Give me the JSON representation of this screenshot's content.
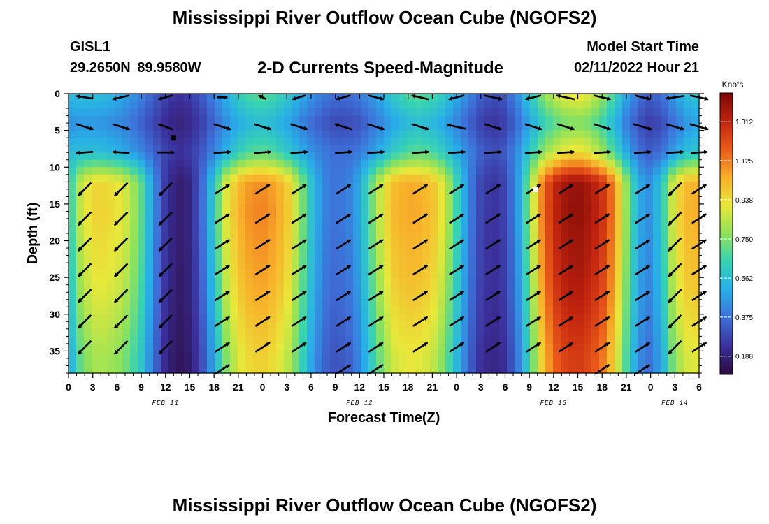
{
  "header": {
    "title": "Mississippi River Outflow Ocean Cube (NGOFS2)",
    "station": "GISL1",
    "coords": "29.2650N  89.9580W",
    "subtitle": "2-D Currents Speed-Magnitude",
    "model_start_label": "Model Start Time",
    "model_start_value": "02/11/2022 Hour 21"
  },
  "footer": {
    "title": "Mississippi River Outflow Ocean Cube (NGOFS2)"
  },
  "chart_data": {
    "type": "heatmap",
    "xlabel": "Forecast Time(Z)",
    "ylabel": "Depth (ft)",
    "x_tick_labels": [
      "0",
      "3",
      "6",
      "9",
      "12",
      "15",
      "18",
      "21",
      "0",
      "3",
      "6",
      "9",
      "12",
      "15",
      "18",
      "21",
      "0",
      "3",
      "6",
      "9",
      "12",
      "15",
      "18",
      "21",
      "0",
      "3",
      "6"
    ],
    "date_labels": [
      {
        "label": "FEB 11",
        "hour": 12
      },
      {
        "label": "FEB 12",
        "hour": 36
      },
      {
        "label": "FEB 13",
        "hour": 60
      },
      {
        "label": "FEB 14",
        "hour": 75
      }
    ],
    "x_range_hours": [
      0,
      78
    ],
    "y_ticks": [
      0,
      5,
      10,
      15,
      20,
      25,
      30,
      35
    ],
    "y_range_ft": [
      0,
      38
    ],
    "colorbar": {
      "title": "Knots",
      "tick_labels": [
        "1.312",
        "1.125",
        "0.938",
        "0.750",
        "0.562",
        "0.375",
        "0.188"
      ],
      "tick_values": [
        1.312,
        1.125,
        0.938,
        0.75,
        0.562,
        0.375,
        0.188
      ],
      "range": [
        0.1,
        1.45
      ],
      "colors": [
        "#2a0a3c",
        "#3b2f9a",
        "#3e6fd8",
        "#28aee8",
        "#36d2b4",
        "#8fe25a",
        "#e8e83a",
        "#f8b02a",
        "#ea5a1a",
        "#c2240e",
        "#7a0808"
      ]
    },
    "speed_grid_knots": {
      "times_hours": [
        0,
        1.5,
        3,
        4.5,
        6,
        7.5,
        9,
        10.5,
        12,
        13.5,
        15,
        16.5,
        18,
        19.5,
        21,
        22.5,
        24,
        25.5,
        27,
        28.5,
        30,
        31.5,
        33,
        34.5,
        36,
        37.5,
        39,
        40.5,
        42,
        43.5,
        45,
        46.5,
        48,
        49.5,
        51,
        52.5,
        54,
        55.5,
        57,
        58.5,
        60,
        61.5,
        63,
        64.5,
        66,
        67.5,
        69,
        70.5,
        72,
        73.5,
        75,
        76.5,
        78
      ],
      "depths_ft": [
        0,
        4,
        8,
        12,
        16,
        20,
        24,
        28,
        32,
        36
      ],
      "rows": [
        [
          0.55,
          0.56,
          0.56,
          0.55,
          0.52,
          0.47,
          0.41,
          0.34,
          0.28,
          0.24,
          0.26,
          0.32,
          0.42,
          0.52,
          0.62,
          0.68,
          0.7,
          0.67,
          0.6,
          0.52,
          0.45,
          0.4,
          0.37,
          0.37,
          0.4,
          0.46,
          0.54,
          0.62,
          0.68,
          0.7,
          0.67,
          0.6,
          0.51,
          0.42,
          0.34,
          0.3,
          0.33,
          0.44,
          0.6,
          0.75,
          0.86,
          0.92,
          0.94,
          0.9,
          0.8,
          0.66,
          0.5,
          0.38,
          0.33,
          0.38,
          0.48,
          0.56,
          0.6
        ],
        [
          0.44,
          0.45,
          0.45,
          0.44,
          0.42,
          0.39,
          0.34,
          0.28,
          0.22,
          0.19,
          0.21,
          0.27,
          0.35,
          0.43,
          0.5,
          0.54,
          0.56,
          0.53,
          0.48,
          0.42,
          0.36,
          0.32,
          0.29,
          0.29,
          0.31,
          0.37,
          0.43,
          0.49,
          0.54,
          0.56,
          0.53,
          0.48,
          0.41,
          0.34,
          0.27,
          0.24,
          0.27,
          0.36,
          0.48,
          0.6,
          0.68,
          0.73,
          0.75,
          0.72,
          0.64,
          0.53,
          0.4,
          0.3,
          0.26,
          0.3,
          0.38,
          0.45,
          0.48
        ],
        [
          0.55,
          0.56,
          0.56,
          0.55,
          0.52,
          0.48,
          0.42,
          0.35,
          0.28,
          0.24,
          0.26,
          0.32,
          0.42,
          0.52,
          0.62,
          0.68,
          0.7,
          0.67,
          0.6,
          0.52,
          0.45,
          0.4,
          0.37,
          0.37,
          0.4,
          0.46,
          0.54,
          0.62,
          0.68,
          0.7,
          0.67,
          0.6,
          0.51,
          0.42,
          0.34,
          0.3,
          0.33,
          0.44,
          0.6,
          0.75,
          0.86,
          0.92,
          0.94,
          0.9,
          0.8,
          0.66,
          0.5,
          0.38,
          0.33,
          0.38,
          0.48,
          0.56,
          0.6
        ],
        [
          0.6,
          0.85,
          0.95,
          0.95,
          0.92,
          0.85,
          0.7,
          0.45,
          0.25,
          0.17,
          0.2,
          0.35,
          0.6,
          0.88,
          1.02,
          1.08,
          1.1,
          1.06,
          0.98,
          0.8,
          0.58,
          0.42,
          0.38,
          0.4,
          0.5,
          0.72,
          0.92,
          1.02,
          1.05,
          1.04,
          1.0,
          0.88,
          0.65,
          0.42,
          0.28,
          0.24,
          0.28,
          0.45,
          0.75,
          1.1,
          1.3,
          1.38,
          1.4,
          1.36,
          1.28,
          1.1,
          0.78,
          0.5,
          0.44,
          0.62,
          0.92,
          1.02,
          1.04
        ],
        [
          0.6,
          0.86,
          0.96,
          0.96,
          0.93,
          0.86,
          0.7,
          0.45,
          0.25,
          0.17,
          0.2,
          0.36,
          0.62,
          0.9,
          1.04,
          1.1,
          1.12,
          1.08,
          1.0,
          0.81,
          0.58,
          0.42,
          0.38,
          0.4,
          0.5,
          0.72,
          0.93,
          1.03,
          1.06,
          1.05,
          1.01,
          0.89,
          0.65,
          0.42,
          0.28,
          0.24,
          0.28,
          0.45,
          0.76,
          1.11,
          1.31,
          1.39,
          1.41,
          1.37,
          1.29,
          1.11,
          0.78,
          0.5,
          0.44,
          0.62,
          0.93,
          1.03,
          1.05
        ],
        [
          0.58,
          0.84,
          0.94,
          0.94,
          0.91,
          0.84,
          0.69,
          0.44,
          0.24,
          0.17,
          0.2,
          0.35,
          0.6,
          0.88,
          1.02,
          1.08,
          1.1,
          1.06,
          0.98,
          0.79,
          0.57,
          0.41,
          0.37,
          0.39,
          0.49,
          0.71,
          0.91,
          1.01,
          1.04,
          1.03,
          0.99,
          0.87,
          0.64,
          0.41,
          0.27,
          0.23,
          0.27,
          0.44,
          0.74,
          1.09,
          1.29,
          1.37,
          1.39,
          1.35,
          1.27,
          1.09,
          0.77,
          0.49,
          0.43,
          0.61,
          0.91,
          1.01,
          1.03
        ],
        [
          0.56,
          0.82,
          0.92,
          0.92,
          0.89,
          0.82,
          0.67,
          0.43,
          0.24,
          0.16,
          0.19,
          0.34,
          0.58,
          0.86,
          1.0,
          1.06,
          1.08,
          1.04,
          0.96,
          0.77,
          0.56,
          0.4,
          0.36,
          0.38,
          0.48,
          0.69,
          0.89,
          0.99,
          1.02,
          1.01,
          0.97,
          0.85,
          0.62,
          0.4,
          0.27,
          0.23,
          0.27,
          0.43,
          0.72,
          1.07,
          1.27,
          1.35,
          1.37,
          1.33,
          1.25,
          1.07,
          0.75,
          0.48,
          0.42,
          0.6,
          0.89,
          0.99,
          1.01
        ],
        [
          0.54,
          0.79,
          0.89,
          0.89,
          0.86,
          0.79,
          0.65,
          0.42,
          0.23,
          0.16,
          0.19,
          0.33,
          0.56,
          0.83,
          0.97,
          1.03,
          1.05,
          1.01,
          0.93,
          0.75,
          0.54,
          0.39,
          0.35,
          0.37,
          0.46,
          0.67,
          0.86,
          0.96,
          0.99,
          0.98,
          0.94,
          0.82,
          0.6,
          0.39,
          0.26,
          0.22,
          0.26,
          0.42,
          0.7,
          1.04,
          1.24,
          1.32,
          1.34,
          1.3,
          1.22,
          1.04,
          0.73,
          0.47,
          0.41,
          0.58,
          0.86,
          0.96,
          0.98
        ],
        [
          0.51,
          0.75,
          0.85,
          0.85,
          0.82,
          0.75,
          0.62,
          0.4,
          0.22,
          0.15,
          0.18,
          0.31,
          0.53,
          0.79,
          0.93,
          0.99,
          1.01,
          0.97,
          0.89,
          0.72,
          0.52,
          0.37,
          0.33,
          0.35,
          0.44,
          0.64,
          0.82,
          0.92,
          0.95,
          0.94,
          0.9,
          0.78,
          0.57,
          0.37,
          0.25,
          0.21,
          0.25,
          0.4,
          0.67,
          1.0,
          1.2,
          1.28,
          1.3,
          1.26,
          1.18,
          1.0,
          0.7,
          0.45,
          0.39,
          0.55,
          0.82,
          0.92,
          0.94
        ],
        [
          0.48,
          0.71,
          0.81,
          0.81,
          0.78,
          0.71,
          0.59,
          0.38,
          0.21,
          0.14,
          0.17,
          0.29,
          0.5,
          0.75,
          0.89,
          0.95,
          0.97,
          0.93,
          0.85,
          0.69,
          0.49,
          0.35,
          0.31,
          0.33,
          0.42,
          0.61,
          0.78,
          0.88,
          0.91,
          0.9,
          0.86,
          0.74,
          0.54,
          0.35,
          0.23,
          0.2,
          0.23,
          0.38,
          0.64,
          0.96,
          1.16,
          1.24,
          1.26,
          1.22,
          1.14,
          0.96,
          0.67,
          0.43,
          0.37,
          0.52,
          0.78,
          0.88,
          0.9
        ]
      ]
    },
    "vectors": {
      "times_hours": [
        2,
        6.5,
        12,
        19,
        24,
        28.5,
        34,
        38,
        43.5,
        48,
        52.5,
        57.5,
        61.5,
        66,
        71,
        75,
        78
      ],
      "depths_ft": [
        0.5,
        4.5,
        8,
        13,
        17,
        20.5,
        24,
        27.5,
        31,
        34.5,
        37.5
      ],
      "u_knots": [
        [
          -1.3,
          -1.3,
          -1.1,
          0.8,
          -0.6,
          -1.0,
          -1.1,
          1.2,
          -1.3,
          -1.2,
          1.4,
          -1.2,
          -1.4,
          1.3,
          1.2,
          -1.4,
          1.4
        ],
        [
          1.3,
          1.3,
          -1.1,
          1.3,
          1.3,
          1.3,
          -1.3,
          1.3,
          1.3,
          -1.4,
          1.3,
          1.3,
          1.3,
          1.3,
          1.4,
          1.4,
          1.4
        ],
        [
          -1.3,
          -1.3,
          1.3,
          1.3,
          1.3,
          1.3,
          1.3,
          1.3,
          1.3,
          1.3,
          1.3,
          1.3,
          1.3,
          1.3,
          1.3,
          1.3,
          1.3
        ],
        [
          -1.0,
          -1.0,
          -1.0,
          1.1,
          1.1,
          1.1,
          1.1,
          1.1,
          1.1,
          1.1,
          1.1,
          1.1,
          1.1,
          1.1,
          1.1,
          -1.0,
          1.1
        ],
        [
          -1.0,
          -1.0,
          -1.0,
          1.1,
          1.1,
          1.1,
          1.1,
          1.1,
          1.1,
          1.1,
          1.1,
          1.1,
          1.1,
          1.1,
          1.1,
          -1.0,
          1.1
        ],
        [
          -1.0,
          -1.0,
          -1.0,
          1.1,
          1.1,
          1.1,
          1.1,
          1.1,
          1.1,
          1.1,
          1.1,
          1.1,
          1.1,
          1.1,
          1.1,
          -1.0,
          1.1
        ],
        [
          -1.0,
          -1.0,
          -1.0,
          1.1,
          1.1,
          1.1,
          1.1,
          1.1,
          1.1,
          1.1,
          1.1,
          1.1,
          1.1,
          1.1,
          1.1,
          -1.0,
          1.1
        ],
        [
          -1.0,
          -1.0,
          -1.0,
          1.1,
          1.1,
          1.1,
          1.1,
          1.1,
          1.1,
          1.1,
          1.1,
          1.1,
          1.1,
          1.1,
          1.1,
          -1.0,
          1.1
        ],
        [
          -1.0,
          -1.0,
          -1.0,
          1.1,
          1.1,
          1.1,
          1.1,
          1.1,
          1.1,
          1.1,
          1.1,
          1.1,
          1.1,
          1.1,
          1.1,
          -1.0,
          1.1
        ],
        [
          -1.0,
          -1.0,
          -1.0,
          1.1,
          1.1,
          1.1,
          1.1,
          1.1,
          1.1,
          1.1,
          1.1,
          1.1,
          1.1,
          1.1,
          1.1,
          -1.0,
          1.1
        ],
        [
          0,
          0,
          0,
          1.1,
          0,
          0,
          1.1,
          1.1,
          0,
          0,
          0,
          0,
          0,
          1.1,
          1.1,
          0,
          0
        ]
      ],
      "v_knots": [
        [
          -0.2,
          0.3,
          0.3,
          0.0,
          -0.3,
          0.3,
          0.3,
          0.3,
          -0.3,
          0.3,
          0.3,
          0.3,
          -0.3,
          0.3,
          0.3,
          0.2,
          0.3
        ],
        [
          0.4,
          0.4,
          -0.4,
          0.4,
          0.4,
          0.4,
          -0.4,
          0.4,
          0.4,
          -0.3,
          0.4,
          0.4,
          0.4,
          0.4,
          0.4,
          0.4,
          0.4
        ],
        [
          0.1,
          -0.1,
          0.0,
          -0.1,
          -0.1,
          -0.1,
          -0.1,
          -0.1,
          -0.1,
          -0.1,
          -0.1,
          -0.1,
          -0.1,
          -0.1,
          -0.1,
          -0.1,
          -0.1
        ],
        [
          1.0,
          1.0,
          1.0,
          -0.7,
          -0.7,
          -0.7,
          -0.7,
          -0.7,
          -0.7,
          -0.7,
          -0.7,
          -0.7,
          -0.7,
          -0.7,
          -0.7,
          1.0,
          -0.7
        ],
        [
          1.0,
          1.0,
          1.0,
          -0.7,
          -0.7,
          -0.7,
          -0.7,
          -0.7,
          -0.7,
          -0.7,
          -0.7,
          -0.7,
          -0.7,
          -0.7,
          -0.7,
          1.0,
          -0.7
        ],
        [
          1.0,
          1.0,
          1.0,
          -0.7,
          -0.7,
          -0.7,
          -0.7,
          -0.7,
          -0.7,
          -0.7,
          -0.7,
          -0.7,
          -0.7,
          -0.7,
          -0.7,
          1.0,
          -0.7
        ],
        [
          1.0,
          1.0,
          1.0,
          -0.7,
          -0.7,
          -0.7,
          -0.7,
          -0.7,
          -0.7,
          -0.7,
          -0.7,
          -0.7,
          -0.7,
          -0.7,
          -0.7,
          1.0,
          -0.7
        ],
        [
          1.0,
          1.0,
          1.0,
          -0.7,
          -0.7,
          -0.7,
          -0.7,
          -0.7,
          -0.7,
          -0.7,
          -0.7,
          -0.7,
          -0.7,
          -0.7,
          -0.7,
          1.0,
          -0.7
        ],
        [
          1.0,
          1.0,
          1.0,
          -0.7,
          -0.7,
          -0.7,
          -0.7,
          -0.7,
          -0.7,
          -0.7,
          -0.7,
          -0.7,
          -0.7,
          -0.7,
          -0.7,
          1.0,
          -0.7
        ],
        [
          1.0,
          1.0,
          1.0,
          -0.7,
          -0.7,
          -0.7,
          -0.7,
          -0.7,
          -0.7,
          -0.7,
          -0.7,
          -0.7,
          -0.7,
          -0.7,
          -0.7,
          1.0,
          -0.7
        ],
        [
          0,
          0,
          0,
          -0.7,
          0,
          0,
          -0.7,
          -0.7,
          0,
          0,
          0,
          0,
          0,
          -0.7,
          -0.7,
          0,
          0
        ]
      ]
    },
    "markers": [
      {
        "hour": 13,
        "depth": 6,
        "color": "#000000"
      },
      {
        "hour": 57.8,
        "depth": 13,
        "color": "#ffffff"
      }
    ]
  }
}
